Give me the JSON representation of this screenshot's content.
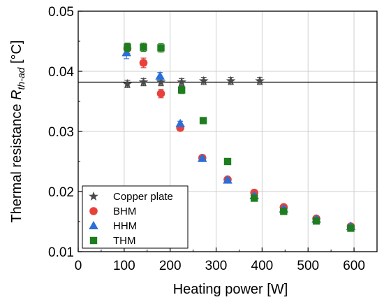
{
  "chart_data": {
    "type": "scatter",
    "xlabel": "Heating power [W]",
    "ylabel_parts": {
      "main": "Thermal resistance ",
      "symbol": "R",
      "subscript": "th-ad",
      "unit": " [°C]"
    },
    "xlim": [
      0,
      650
    ],
    "ylim": [
      0.01,
      0.05
    ],
    "xticks": [
      "0",
      "100",
      "200",
      "300",
      "400",
      "500",
      "600"
    ],
    "yticks": [
      "0.01",
      "0.02",
      "0.03",
      "0.04",
      "0.05"
    ],
    "grid": true,
    "legend_position": "bottom-left",
    "reference_line_y": 0.0382,
    "series": [
      {
        "name": "Copper plate",
        "marker": "star",
        "color": "#4a4a4a",
        "points": [
          {
            "x": 107,
            "y": 0.0379,
            "err": 0.0006
          },
          {
            "x": 142,
            "y": 0.0382,
            "err": 0.0006
          },
          {
            "x": 180,
            "y": 0.0382,
            "err": 0.0006
          },
          {
            "x": 225,
            "y": 0.0382,
            "err": 0.0006
          },
          {
            "x": 273,
            "y": 0.0384,
            "err": 0.0006
          },
          {
            "x": 332,
            "y": 0.0384,
            "err": 0.0006
          },
          {
            "x": 395,
            "y": 0.0384,
            "err": 0.0006
          }
        ]
      },
      {
        "name": "BHM",
        "marker": "circle",
        "color": "#e8413c",
        "points": [
          {
            "x": 107,
            "y": 0.0438,
            "err": 0.0008
          },
          {
            "x": 142,
            "y": 0.0414,
            "err": 0.0008
          },
          {
            "x": 180,
            "y": 0.0363,
            "err": 0.0007
          },
          {
            "x": 222,
            "y": 0.0306,
            "err": 0.0003
          },
          {
            "x": 270,
            "y": 0.0256,
            "err": 0.0003
          },
          {
            "x": 325,
            "y": 0.022,
            "err": 0.0003
          },
          {
            "x": 383,
            "y": 0.0198,
            "err": 0.0003
          },
          {
            "x": 447,
            "y": 0.0174,
            "err": 0.0003
          },
          {
            "x": 518,
            "y": 0.0155,
            "err": 0.0003
          },
          {
            "x": 593,
            "y": 0.0142,
            "err": 0.0003
          }
        ]
      },
      {
        "name": "HHM",
        "marker": "triangle",
        "color": "#2b6fd6",
        "points": [
          {
            "x": 105,
            "y": 0.0431,
            "err": 0.001
          },
          {
            "x": 178,
            "y": 0.0392,
            "err": 0.0006
          },
          {
            "x": 222,
            "y": 0.0313,
            "err": 0.0004
          },
          {
            "x": 270,
            "y": 0.0255,
            "err": 0.0003
          },
          {
            "x": 325,
            "y": 0.0219,
            "err": 0.0003
          },
          {
            "x": 383,
            "y": 0.0193,
            "err": 0.0003
          },
          {
            "x": 447,
            "y": 0.0171,
            "err": 0.0003
          },
          {
            "x": 518,
            "y": 0.0154,
            "err": 0.0003
          },
          {
            "x": 593,
            "y": 0.0142,
            "err": 0.0003
          }
        ]
      },
      {
        "name": "THM",
        "marker": "square",
        "color": "#1e7d1e",
        "points": [
          {
            "x": 107,
            "y": 0.044,
            "err": 0.0007
          },
          {
            "x": 142,
            "y": 0.044,
            "err": 0.0007
          },
          {
            "x": 180,
            "y": 0.0439,
            "err": 0.0007
          },
          {
            "x": 225,
            "y": 0.0369,
            "err": 0.0006
          },
          {
            "x": 272,
            "y": 0.0318,
            "err": 0.0004
          },
          {
            "x": 325,
            "y": 0.025,
            "err": 0.0003
          },
          {
            "x": 383,
            "y": 0.0189,
            "err": 0.0003
          },
          {
            "x": 447,
            "y": 0.0167,
            "err": 0.0003
          },
          {
            "x": 518,
            "y": 0.0151,
            "err": 0.0003
          },
          {
            "x": 593,
            "y": 0.0139,
            "err": 0.0003
          }
        ]
      }
    ]
  }
}
